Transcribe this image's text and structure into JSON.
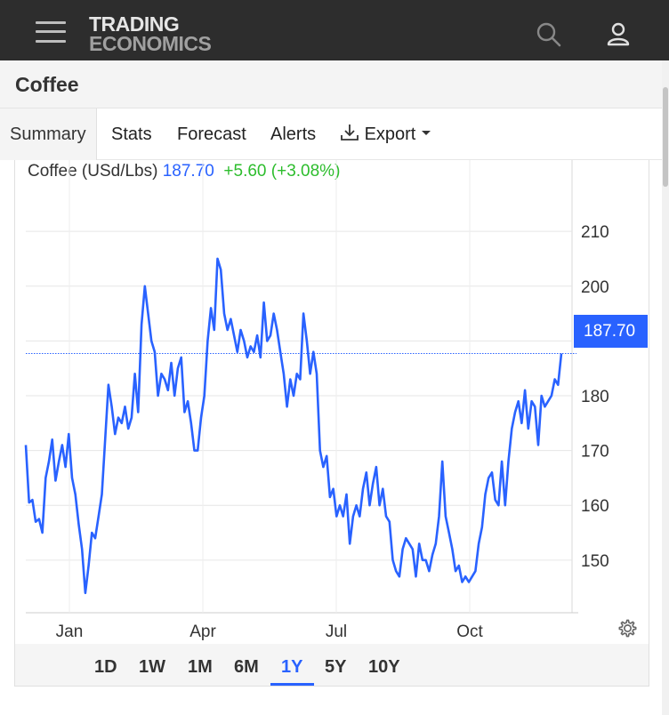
{
  "header": {
    "logo_line1": "TRADING",
    "logo_line2": "ECONOMICS",
    "icons": [
      "menu-icon",
      "search-icon",
      "user-icon"
    ]
  },
  "page": {
    "title": "Coffee"
  },
  "tabs": [
    {
      "label": "Summary",
      "active": true
    },
    {
      "label": "Stats"
    },
    {
      "label": "Forecast"
    },
    {
      "label": "Alerts"
    },
    {
      "label": "Export",
      "icon": "download-icon",
      "dropdown": true
    }
  ],
  "quote": {
    "name": "Coffee (USd/Lbs)",
    "price": "187.70",
    "change": "+5.60 (+3.08%)",
    "last_badge": "187.70"
  },
  "range_buttons": [
    {
      "label": "1D"
    },
    {
      "label": "1W"
    },
    {
      "label": "1M"
    },
    {
      "label": "6M"
    },
    {
      "label": "1Y",
      "active": true
    },
    {
      "label": "5Y"
    },
    {
      "label": "10Y"
    }
  ],
  "colors": {
    "line": "#2962ff",
    "positive": "#2dbd2d",
    "header_bg": "#2d2d2d"
  },
  "chart_data": {
    "type": "line",
    "x_ticks": [
      "Jan",
      "Apr",
      "Jul",
      "Oct"
    ],
    "y_ticks": [
      150,
      160,
      170,
      180,
      190,
      200,
      210
    ],
    "ylim": [
      140.4,
      217
    ],
    "last_value": 187.7,
    "grid": true,
    "series": [
      {
        "values": [
          171,
          160.5,
          161,
          157,
          157.5,
          155,
          165,
          168,
          172,
          164.5,
          168,
          171,
          167,
          173,
          165,
          162,
          156.5,
          152,
          144,
          149,
          155,
          154,
          158,
          162,
          172,
          182,
          178,
          173,
          176,
          175,
          178,
          174,
          176,
          184,
          177,
          193,
          200,
          195,
          190,
          188,
          180,
          184,
          183,
          181,
          186,
          180,
          185,
          187,
          177,
          179,
          175,
          170,
          170,
          176,
          180,
          190,
          196,
          192,
          205,
          203,
          195,
          192,
          194,
          191,
          188,
          192,
          190,
          187,
          189,
          188,
          191,
          187,
          197,
          190,
          191,
          195,
          192,
          188,
          184,
          178,
          183,
          180,
          184,
          183,
          195,
          190,
          184,
          188,
          184,
          170,
          167,
          169,
          161.5,
          163,
          158,
          160,
          158,
          162,
          153,
          158,
          160,
          158,
          163,
          166,
          160,
          164,
          167,
          160,
          163,
          158,
          157,
          150,
          148,
          147,
          152,
          154,
          153,
          152,
          147,
          153,
          150,
          150,
          148,
          151,
          153,
          158,
          168,
          158,
          155,
          152,
          148,
          149,
          146,
          147,
          146,
          147,
          148,
          153,
          156,
          162,
          165,
          166,
          161,
          160,
          168,
          160,
          168,
          174,
          177,
          179,
          175,
          181,
          174,
          179,
          178,
          171,
          180,
          178,
          179,
          180,
          183,
          182,
          187.7
        ]
      }
    ]
  }
}
